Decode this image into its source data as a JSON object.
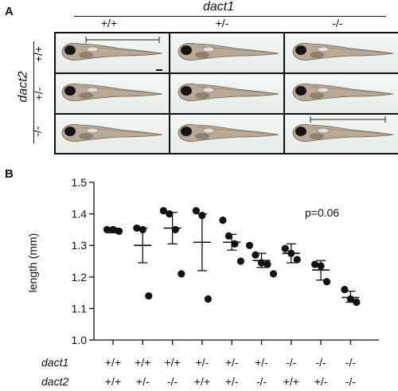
{
  "panel_a": {
    "letter": "A",
    "gene_cols": "dact1",
    "gene_rows": "dact2",
    "col_labels": [
      "+/+",
      "+/-",
      "-/-"
    ],
    "row_labels": [
      "+/+",
      "+/-",
      "-/-"
    ]
  },
  "panel_b": {
    "letter": "B",
    "annotation": "p=0.06",
    "xrow_gene1": "dact1",
    "xrow_gene2": "dact2"
  },
  "chart_data": {
    "type": "scatter",
    "ylabel": "length (mm)",
    "ylim": [
      1.0,
      1.5
    ],
    "yticks": [
      "1.0",
      "1.1",
      "1.2",
      "1.3",
      "1.4",
      "1.5"
    ],
    "groups": [
      {
        "dact1": "+/+",
        "dact2": "+/+",
        "points": [
          1.35,
          1.35,
          1.345
        ],
        "mean": 1.35,
        "sem_low": 1.34,
        "sem_high": 1.355
      },
      {
        "dact1": "+/+",
        "dact2": "+/-",
        "points": [
          1.355,
          1.35,
          1.14
        ],
        "mean": 1.3,
        "sem_low": 1.245,
        "sem_high": 1.355
      },
      {
        "dact1": "+/+",
        "dact2": "-/-",
        "points": [
          1.41,
          1.4,
          1.35,
          1.21
        ],
        "mean": 1.355,
        "sem_low": 1.305,
        "sem_high": 1.405
      },
      {
        "dact1": "+/-",
        "dact2": "+/+",
        "points": [
          1.41,
          1.395,
          1.13
        ],
        "mean": 1.31,
        "sem_low": 1.22,
        "sem_high": 1.4
      },
      {
        "dact1": "+/-",
        "dact2": "+/-",
        "points": [
          1.38,
          1.33,
          1.305,
          1.25
        ],
        "mean": 1.31,
        "sem_low": 1.285,
        "sem_high": 1.335
      },
      {
        "dact1": "+/-",
        "dact2": "-/-",
        "points": [
          1.3,
          1.27,
          1.245,
          1.24,
          1.21
        ],
        "mean": 1.252,
        "sem_low": 1.23,
        "sem_high": 1.275
      },
      {
        "dact1": "-/-",
        "dact2": "+/+",
        "points": [
          1.29,
          1.275,
          1.255
        ],
        "mean": 1.275,
        "sem_low": 1.245,
        "sem_high": 1.305
      },
      {
        "dact1": "-/-",
        "dact2": "+/-",
        "points": [
          1.24,
          1.235,
          1.185
        ],
        "mean": 1.222,
        "sem_low": 1.19,
        "sem_high": 1.252
      },
      {
        "dact1": "-/-",
        "dact2": "-/-",
        "points": [
          1.16,
          1.13,
          1.12
        ],
        "mean": 1.135,
        "sem_low": 1.12,
        "sem_high": 1.155
      }
    ]
  }
}
